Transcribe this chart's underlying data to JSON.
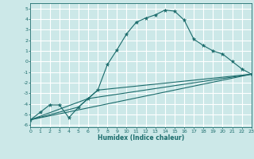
{
  "xlabel": "Humidex (Indice chaleur)",
  "xlim": [
    0,
    23
  ],
  "ylim": [
    -6.2,
    5.5
  ],
  "xticks": [
    0,
    1,
    2,
    3,
    4,
    5,
    6,
    7,
    8,
    9,
    10,
    11,
    12,
    13,
    14,
    15,
    16,
    17,
    18,
    19,
    20,
    21,
    22,
    23
  ],
  "yticks": [
    -6,
    -5,
    -4,
    -3,
    -2,
    -1,
    0,
    1,
    2,
    3,
    4,
    5
  ],
  "bg_color": "#cce8e8",
  "grid_color": "#ffffff",
  "line_color": "#1a6b6b",
  "line1_x": [
    0,
    1,
    2,
    3,
    4,
    5,
    6,
    7,
    8,
    9,
    10,
    11,
    12,
    13,
    14,
    15,
    16,
    17,
    18,
    19,
    20,
    21,
    22,
    23
  ],
  "line1_y": [
    -5.5,
    -4.8,
    -4.1,
    -4.1,
    -5.3,
    -4.3,
    -3.5,
    -2.7,
    -0.3,
    1.1,
    2.6,
    3.7,
    4.1,
    4.4,
    4.85,
    4.75,
    3.9,
    2.1,
    1.5,
    1.0,
    0.7,
    0.0,
    -0.7,
    -1.2
  ],
  "line2_x": [
    0,
    23
  ],
  "line2_y": [
    -5.5,
    -1.2
  ],
  "line3_x": [
    0,
    5,
    7,
    23
  ],
  "line3_y": [
    -5.5,
    -4.3,
    -2.7,
    -1.2
  ],
  "line4_x": [
    0,
    6,
    23
  ],
  "line4_y": [
    -5.5,
    -3.5,
    -1.2
  ]
}
